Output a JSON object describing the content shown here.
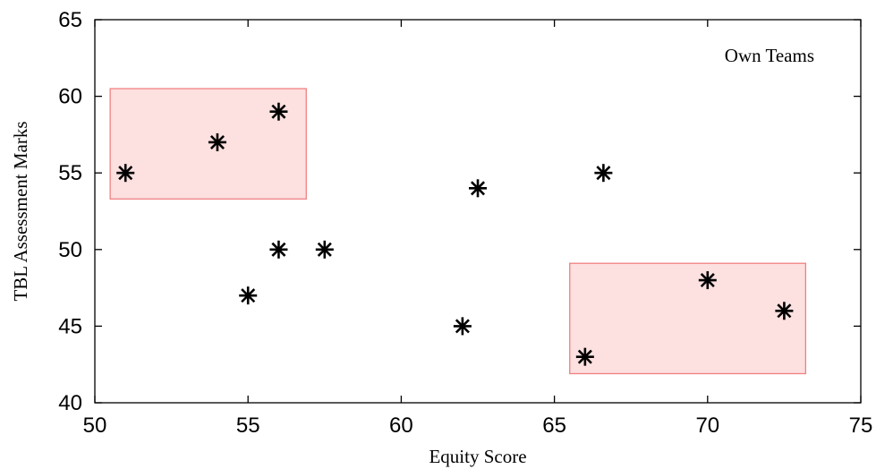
{
  "chart_data": {
    "type": "scatter",
    "title": "",
    "xlabel": "Equity Score",
    "ylabel": "TBL Assessment Marks",
    "xlim": [
      50,
      75
    ],
    "ylim": [
      40,
      65
    ],
    "xticks": [
      50,
      55,
      60,
      65,
      70,
      75
    ],
    "yticks": [
      40,
      45,
      50,
      55,
      60,
      65
    ],
    "grid": false,
    "legend_position": "top-right",
    "series": [
      {
        "name": "Own Teams",
        "marker": "asterisk",
        "color": "#000000",
        "points": [
          {
            "x": 51,
            "y": 55
          },
          {
            "x": 54,
            "y": 57
          },
          {
            "x": 56,
            "y": 59
          },
          {
            "x": 55,
            "y": 47
          },
          {
            "x": 56,
            "y": 50
          },
          {
            "x": 57.5,
            "y": 50
          },
          {
            "x": 62,
            "y": 45
          },
          {
            "x": 62.5,
            "y": 54
          },
          {
            "x": 66.6,
            "y": 55
          },
          {
            "x": 66,
            "y": 43
          },
          {
            "x": 70,
            "y": 48
          },
          {
            "x": 72.5,
            "y": 46
          }
        ]
      }
    ],
    "highlight_regions": [
      {
        "x": [
          50.5,
          56.9
        ],
        "y": [
          53.3,
          60.5
        ],
        "fill": "#fde0e0",
        "stroke": "#f08080"
      },
      {
        "x": [
          65.5,
          73.2
        ],
        "y": [
          41.9,
          49.1
        ],
        "fill": "#fde0e0",
        "stroke": "#f08080"
      }
    ]
  }
}
